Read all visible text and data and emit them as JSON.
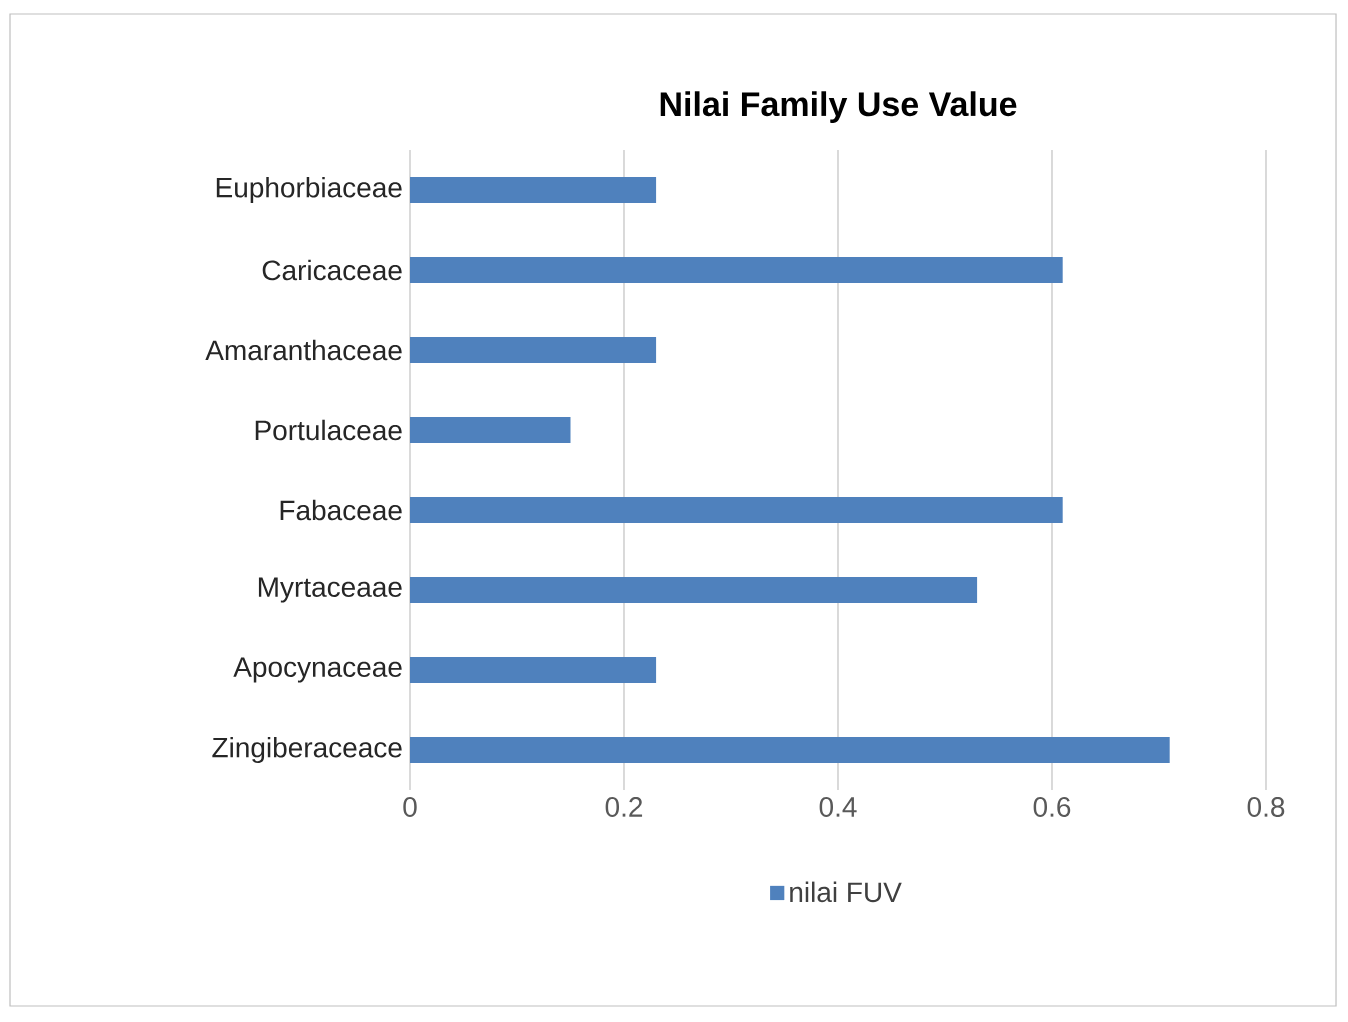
{
  "chart_data": {
    "type": "bar",
    "orientation": "horizontal",
    "title": "Nilai Family Use Value",
    "categories": [
      "Euphorbiaceae",
      "Caricaceae",
      "Amaranthaceae",
      "Portulaceae",
      "Fabaceae",
      "Myrtaceaae",
      "Apocynaceae",
      "Zingiberaceace"
    ],
    "series": [
      {
        "name": "nilai FUV",
        "color": "#4f81bd",
        "values": [
          0.23,
          0.61,
          0.23,
          0.15,
          0.61,
          0.53,
          0.23,
          0.71
        ]
      }
    ],
    "xlim": [
      0,
      0.8
    ],
    "xticks": [
      0,
      0.2,
      0.4,
      0.6,
      0.8
    ],
    "grid": "x",
    "legend": "bottom"
  }
}
